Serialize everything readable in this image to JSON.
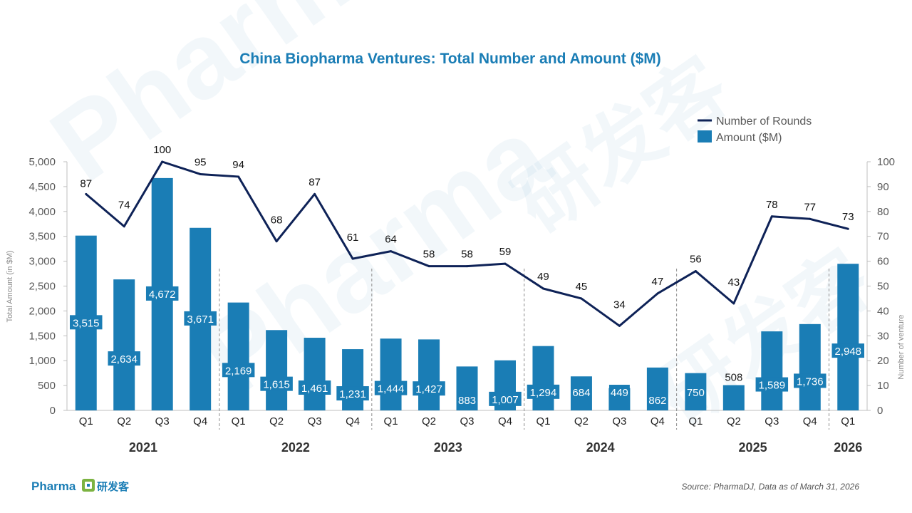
{
  "chart_data": {
    "type": "bar",
    "title": "China Biopharma Ventures: Total Number and Amount ($M)",
    "categories": [
      "Q1",
      "Q2",
      "Q3",
      "Q4",
      "Q1",
      "Q2",
      "Q3",
      "Q4",
      "Q1",
      "Q2",
      "Q3",
      "Q4",
      "Q1",
      "Q2",
      "Q3",
      "Q4",
      "Q1",
      "Q2",
      "Q3",
      "Q4",
      "Q1"
    ],
    "years": [
      {
        "label": "2021",
        "count": 4
      },
      {
        "label": "2022",
        "count": 4
      },
      {
        "label": "2023",
        "count": 4
      },
      {
        "label": "2024",
        "count": 4
      },
      {
        "label": "2025",
        "count": 4
      },
      {
        "label": "2026",
        "count": 1
      }
    ],
    "series": [
      {
        "name": "Amount ($M)",
        "type": "bar",
        "axis": "left",
        "color": "#1a7db5",
        "values": [
          3515,
          2634,
          4672,
          3671,
          2169,
          1615,
          1461,
          1231,
          1444,
          1427,
          883,
          1007,
          1294,
          684,
          449,
          862,
          750,
          508,
          1589,
          1736,
          2948
        ],
        "labels": [
          "3,515",
          "2,634",
          "4,672",
          "3,671",
          "2,169",
          "1,615",
          "1,461",
          "1,231",
          "1,444",
          "1,427",
          "883",
          "1,007",
          "1,294",
          "684",
          "449",
          "862",
          "750",
          "508",
          "1,589",
          "1,736",
          "2,948"
        ]
      },
      {
        "name": "Number of Rounds",
        "type": "line",
        "axis": "right",
        "color": "#0e2257",
        "values": [
          87,
          74,
          100,
          95,
          94,
          68,
          87,
          61,
          64,
          58,
          58,
          59,
          49,
          45,
          34,
          47,
          56,
          43,
          78,
          77,
          73
        ],
        "labels": [
          "87",
          "74",
          "100",
          "95",
          "94",
          "68",
          "87",
          "61",
          "64",
          "58",
          "58",
          "59",
          "49",
          "45",
          "34",
          "47",
          "56",
          "43",
          "78",
          "77",
          "73"
        ]
      }
    ],
    "ylabel": "Total Amount (in $M)",
    "y2label": "Number of venture",
    "ylim": [
      0,
      5000
    ],
    "y2lim": [
      0,
      100
    ],
    "yticks": [
      "0",
      "500",
      "1,000",
      "1,500",
      "2,000",
      "2,500",
      "3,000",
      "3,500",
      "4,000",
      "4,500",
      "5,000"
    ],
    "y2ticks": [
      "0",
      "10",
      "20",
      "30",
      "40",
      "50",
      "60",
      "70",
      "80",
      "90",
      "100"
    ],
    "legend_position": "top-right",
    "grid": false
  },
  "source": "Source: PharmaDJ, Data as of March 31, 2026",
  "brand": {
    "name": "Pharma",
    "cn": "研发客",
    "icon": "dj-logo-icon"
  },
  "watermark": {
    "text": "Pharma",
    "cn": "研发客"
  }
}
